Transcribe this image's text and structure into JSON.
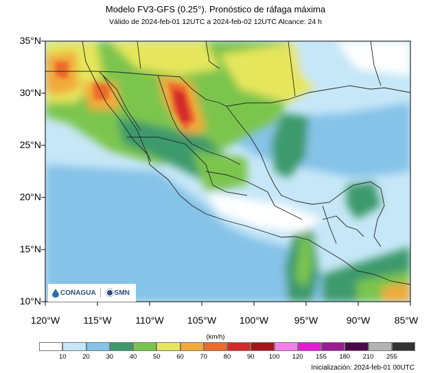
{
  "header": {
    "title": "Modelo FV3-GFS (0.25°). Pronóstico de ráfaga máxima",
    "subtitle": "Válido de 2024-feb-01 12UTC a 2024-feb-02 12UTC    Alcance: 24 h"
  },
  "axes": {
    "lat_labels": [
      "35°N",
      "30°N",
      "25°N",
      "20°N",
      "15°N",
      "10°N"
    ],
    "lon_labels": [
      "120°W",
      "115°W",
      "110°W",
      "105°W",
      "100°W",
      "95°W",
      "90°W",
      "85°W"
    ]
  },
  "colorbar": {
    "unit": "(km/h)",
    "ticks": [
      "10",
      "20",
      "30",
      "40",
      "50",
      "60",
      "70",
      "80",
      "90",
      "100",
      "120",
      "155",
      "180",
      "210",
      "255"
    ],
    "colors": [
      "#ffffff",
      "#c6e7f7",
      "#86c3e8",
      "#3e9a6c",
      "#7bc54e",
      "#e6e65c",
      "#f2a93a",
      "#ec6a2a",
      "#d4292b",
      "#a8141b",
      "#f57fe6",
      "#e619d4",
      "#9c1a96",
      "#4a0a4a",
      "#b3b3b3",
      "#333333"
    ]
  },
  "footer": {
    "init": "Inicialización: 2024-feb-01 00UTC"
  },
  "logos": {
    "conagua": "CONAGUA",
    "smn": "SMN"
  }
}
